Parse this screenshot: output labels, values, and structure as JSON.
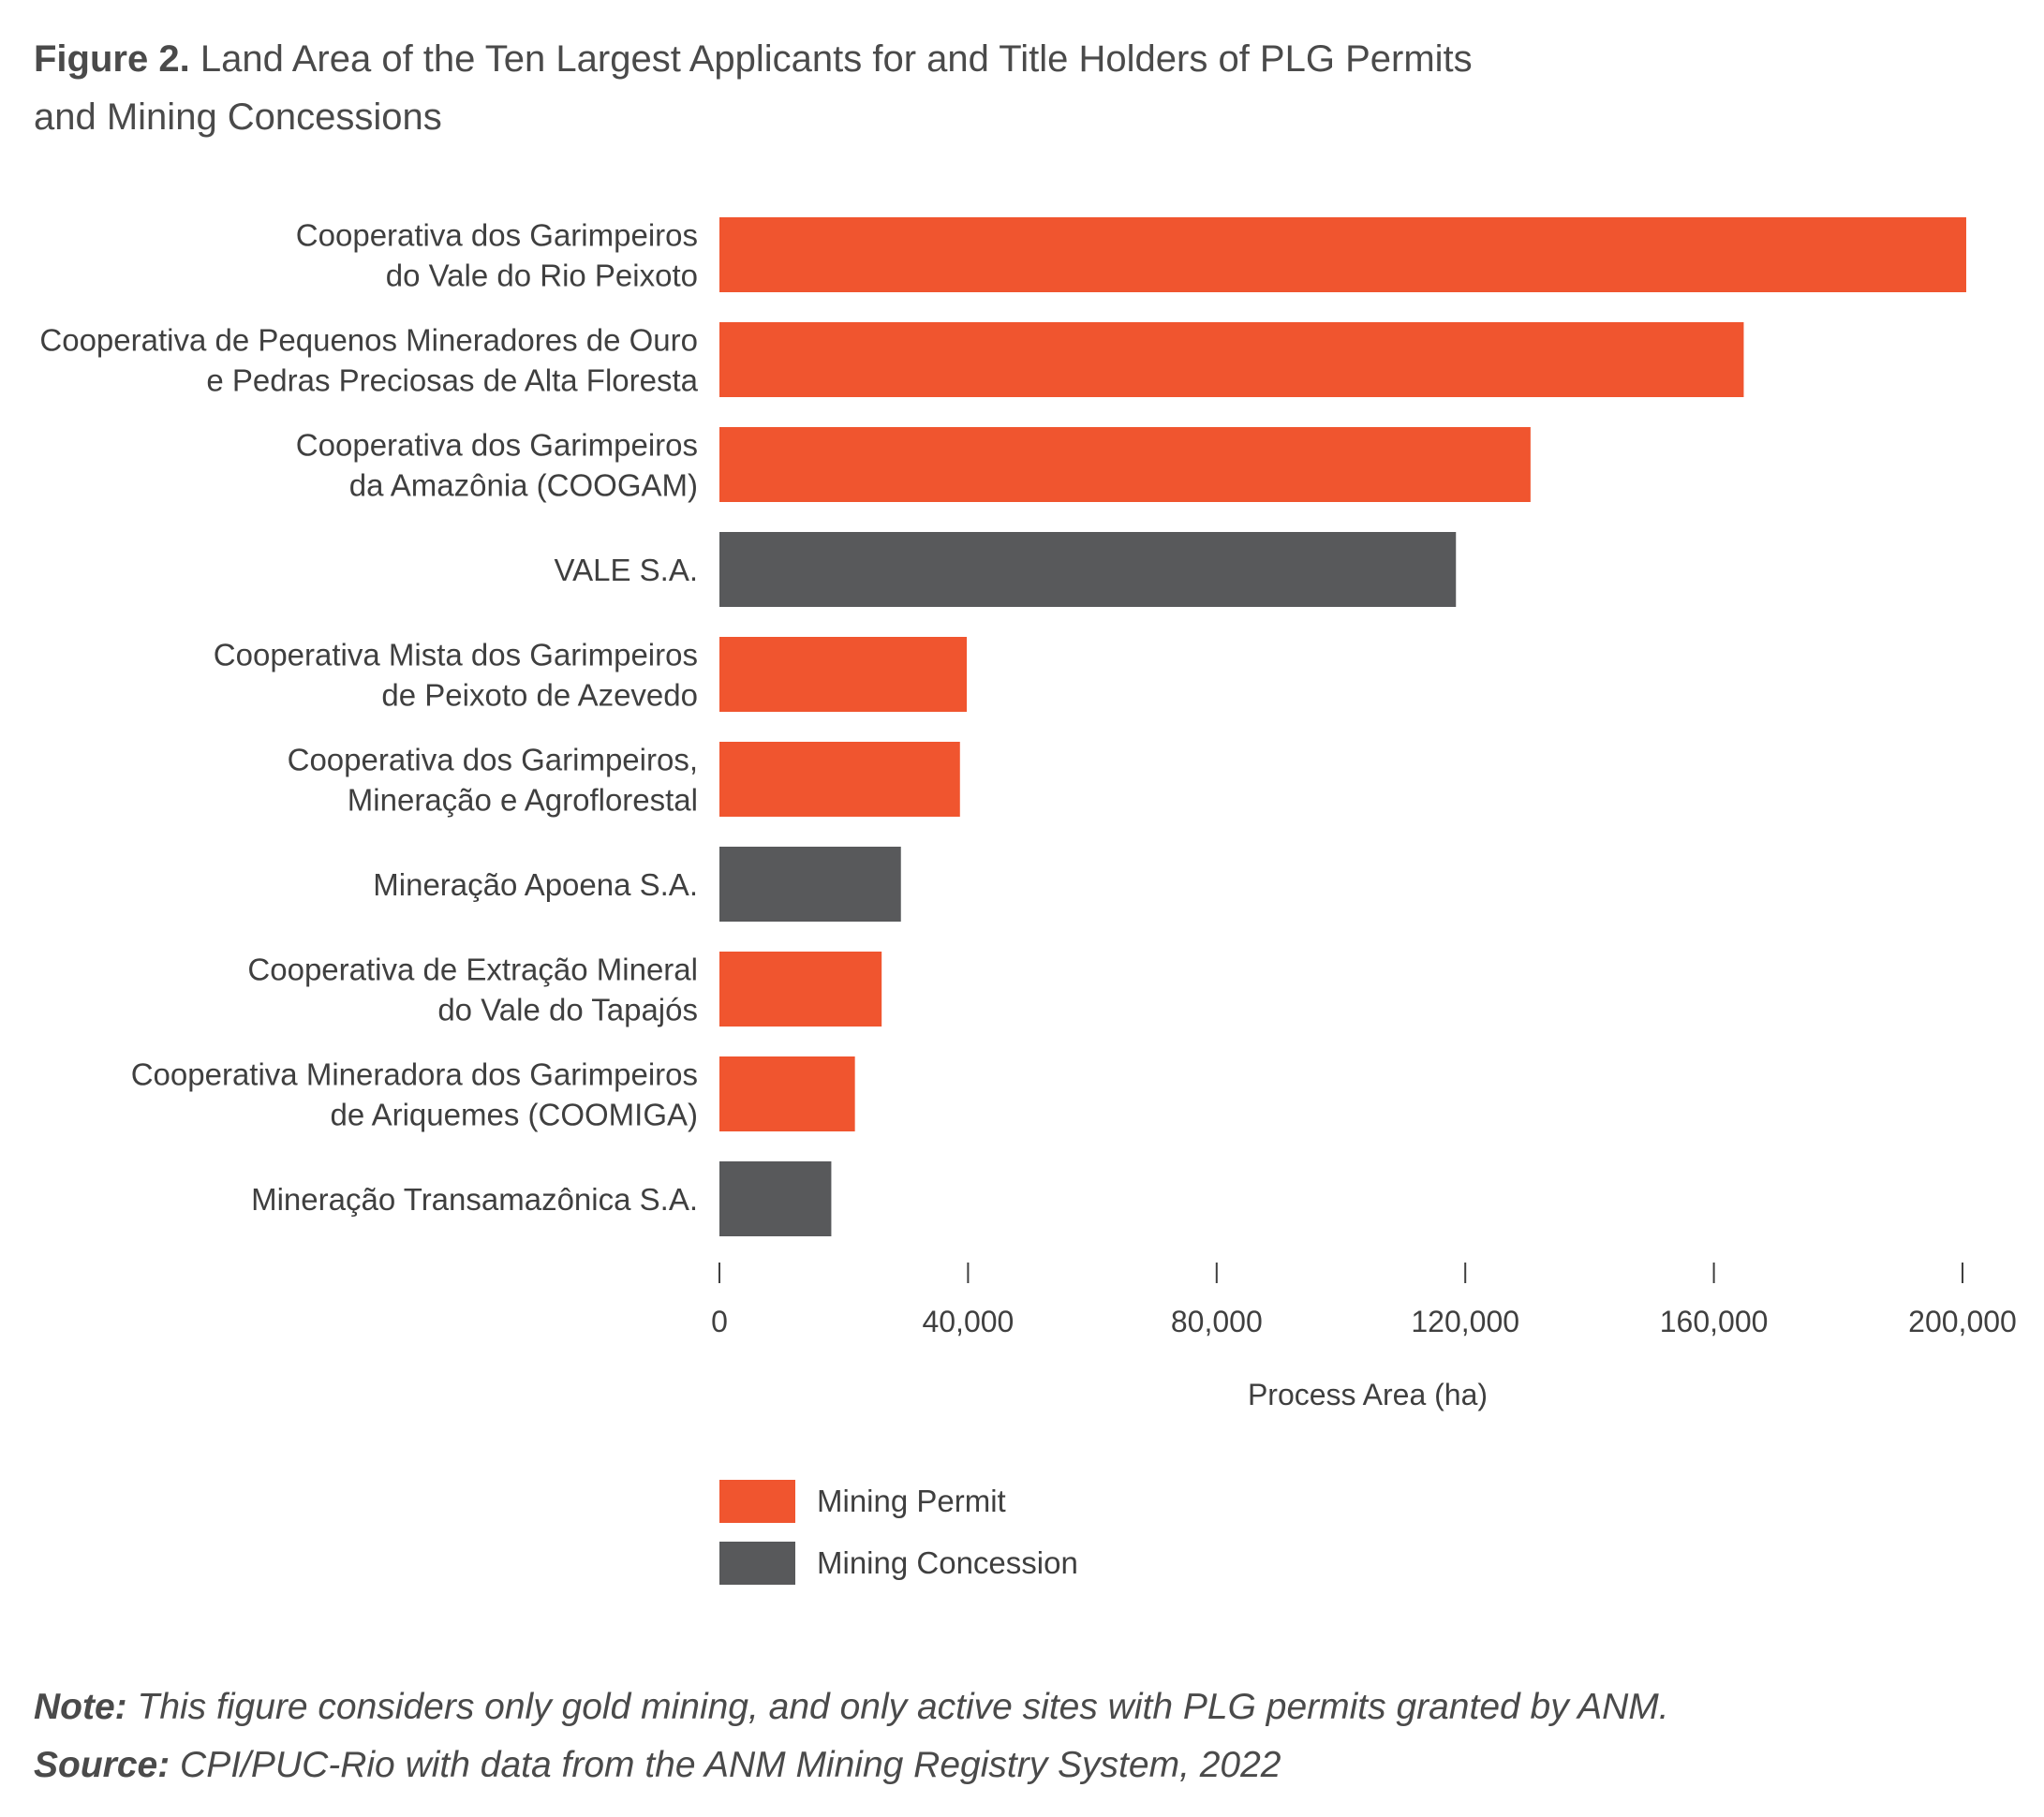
{
  "title": {
    "figure_label": "Figure 2.",
    "line1": "Land Area of the Ten Largest Applicants for and Title Holders of PLG Permits",
    "line2": "and Mining Concessions"
  },
  "notes": {
    "note_label": "Note:",
    "note_text": "This figure considers only gold mining, and only active sites with PLG permits granted by ANM.",
    "source_label": "Source:",
    "source_text": "CPI/PUC-Rio with data from the ANM Mining Registry System, 2022"
  },
  "colors": {
    "Mining Permit": "#f0552f",
    "Mining Concession": "#58595b"
  },
  "chart_data": {
    "type": "bar",
    "orientation": "horizontal",
    "xlabel": "Process Area (ha)",
    "xlim": [
      0,
      200000
    ],
    "xticks": [
      0,
      40000,
      80000,
      120000,
      160000,
      200000
    ],
    "xtick_labels": [
      "0",
      "40,000",
      "80,000",
      "120,000",
      "160,000",
      "200,000"
    ],
    "grid": false,
    "legend_position": "bottom-left",
    "legend": [
      "Mining Permit",
      "Mining Concession"
    ],
    "bars": [
      {
        "label": [
          "Cooperativa dos Garimpeiros",
          "do Vale do Rio Peixoto"
        ],
        "value": 200600,
        "type": "Mining Permit"
      },
      {
        "label": [
          "Cooperativa de Pequenos Mineradores de Ouro",
          "e Pedras Preciosas de Alta Floresta"
        ],
        "value": 164800,
        "type": "Mining Permit"
      },
      {
        "label": [
          "Cooperativa dos Garimpeiros",
          "da Amazônia (COOGAM)"
        ],
        "value": 130500,
        "type": "Mining Permit"
      },
      {
        "label": [
          "VALE S.A."
        ],
        "value": 118500,
        "type": "Mining Concession"
      },
      {
        "label": [
          "Cooperativa Mista dos Garimpeiros",
          "de Peixoto de Azevedo"
        ],
        "value": 39800,
        "type": "Mining Permit"
      },
      {
        "label": [
          "Cooperativa dos Garimpeiros,",
          "Mineração e Agroflorestal"
        ],
        "value": 38700,
        "type": "Mining Permit"
      },
      {
        "label": [
          "Mineração Apoena S.A."
        ],
        "value": 29200,
        "type": "Mining Concession"
      },
      {
        "label": [
          "Cooperativa de Extração Mineral",
          "do Vale do Tapajós"
        ],
        "value": 26100,
        "type": "Mining Permit"
      },
      {
        "label": [
          "Cooperativa Mineradora dos Garimpeiros",
          "de Ariquemes (COOMIGA)"
        ],
        "value": 21800,
        "type": "Mining Permit"
      },
      {
        "label": [
          "Mineração Transamazônica S.A."
        ],
        "value": 18000,
        "type": "Mining Concession"
      }
    ]
  }
}
